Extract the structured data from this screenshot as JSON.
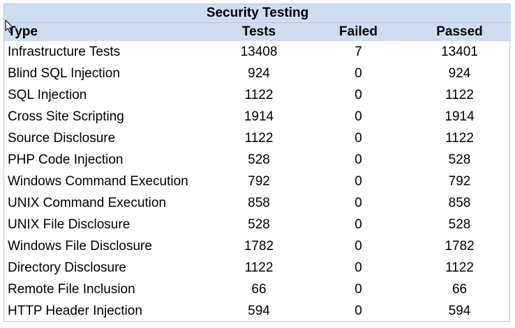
{
  "table": {
    "title": "Security Testing",
    "headers": [
      "Type",
      "Tests",
      "Failed",
      "Passed"
    ],
    "rows": [
      [
        "Infrastructure Tests",
        "13408",
        "7",
        "13401"
      ],
      [
        "Blind SQL Injection",
        "924",
        "0",
        "924"
      ],
      [
        "SQL Injection",
        "1122",
        "0",
        "1122"
      ],
      [
        "Cross Site Scripting",
        "1914",
        "0",
        "1914"
      ],
      [
        "Source Disclosure",
        "1122",
        "0",
        "1122"
      ],
      [
        "PHP Code Injection",
        "528",
        "0",
        "528"
      ],
      [
        "Windows Command Execution",
        "792",
        "0",
        "792"
      ],
      [
        "UNIX Command Execution",
        "858",
        "0",
        "858"
      ],
      [
        "UNIX File Disclosure",
        "528",
        "0",
        "528"
      ],
      [
        "Windows File Disclosure",
        "1782",
        "0",
        "1782"
      ],
      [
        "Directory Disclosure",
        "1122",
        "0",
        "1122"
      ],
      [
        "Remote File Inclusion",
        "66",
        "0",
        "66"
      ],
      [
        "HTTP Header Injection",
        "594",
        "0",
        "594"
      ]
    ]
  },
  "colors": {
    "header_background": "#cfdcf2",
    "border": "#bfc4cc",
    "text": "#000000"
  },
  "cursor": {
    "icon": "mouse-pointer-icon"
  }
}
